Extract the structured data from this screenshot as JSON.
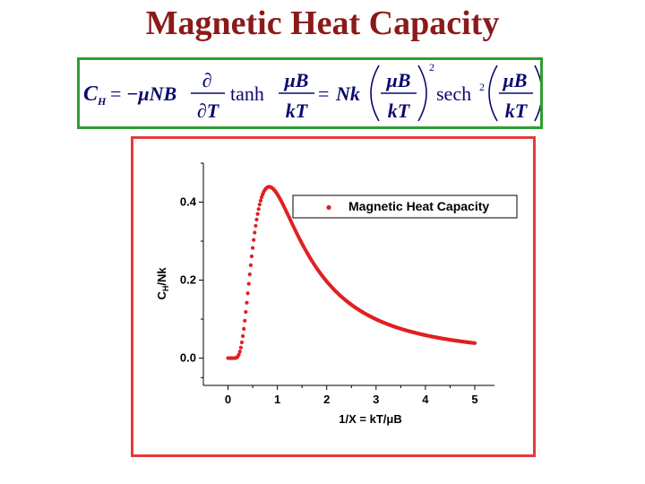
{
  "title": "Magnetic Heat Capacity",
  "formula": {
    "lhs": "C",
    "lhs_sub": "H",
    "equals": "=",
    "minus_mu_NB": "−μNB",
    "partial": "∂",
    "partial_T": "∂T",
    "tanh": "tanh",
    "muB": "μB",
    "kT": "kT",
    "Nk": "Nk",
    "sech": "sech",
    "exp2": "2"
  },
  "chart_data": {
    "type": "scatter",
    "xlabel": "1/X = kT/μB",
    "ylabel": "C_H/Nk",
    "ylabel_main": "C",
    "ylabel_sub": "H",
    "ylabel_rest": "/Nk",
    "xlim": [
      -0.5,
      5.4
    ],
    "ylim": [
      -0.07,
      0.5
    ],
    "xticks": [
      0,
      1,
      2,
      3,
      4,
      5
    ],
    "xtick_labels": [
      "0",
      "1",
      "2",
      "3",
      "4",
      "5"
    ],
    "yticks": [
      0.0,
      0.2,
      0.4
    ],
    "ytick_labels": [
      "0.0",
      "0.2",
      "0.4"
    ],
    "legend_placement": "top-right",
    "series": [
      {
        "name": "Magnetic Heat Capacity",
        "color": "#e02020",
        "function": "y = x^-2 * sech^2(1/x)",
        "x_range": [
          0.0,
          5.0
        ],
        "points_count": 250
      }
    ]
  }
}
